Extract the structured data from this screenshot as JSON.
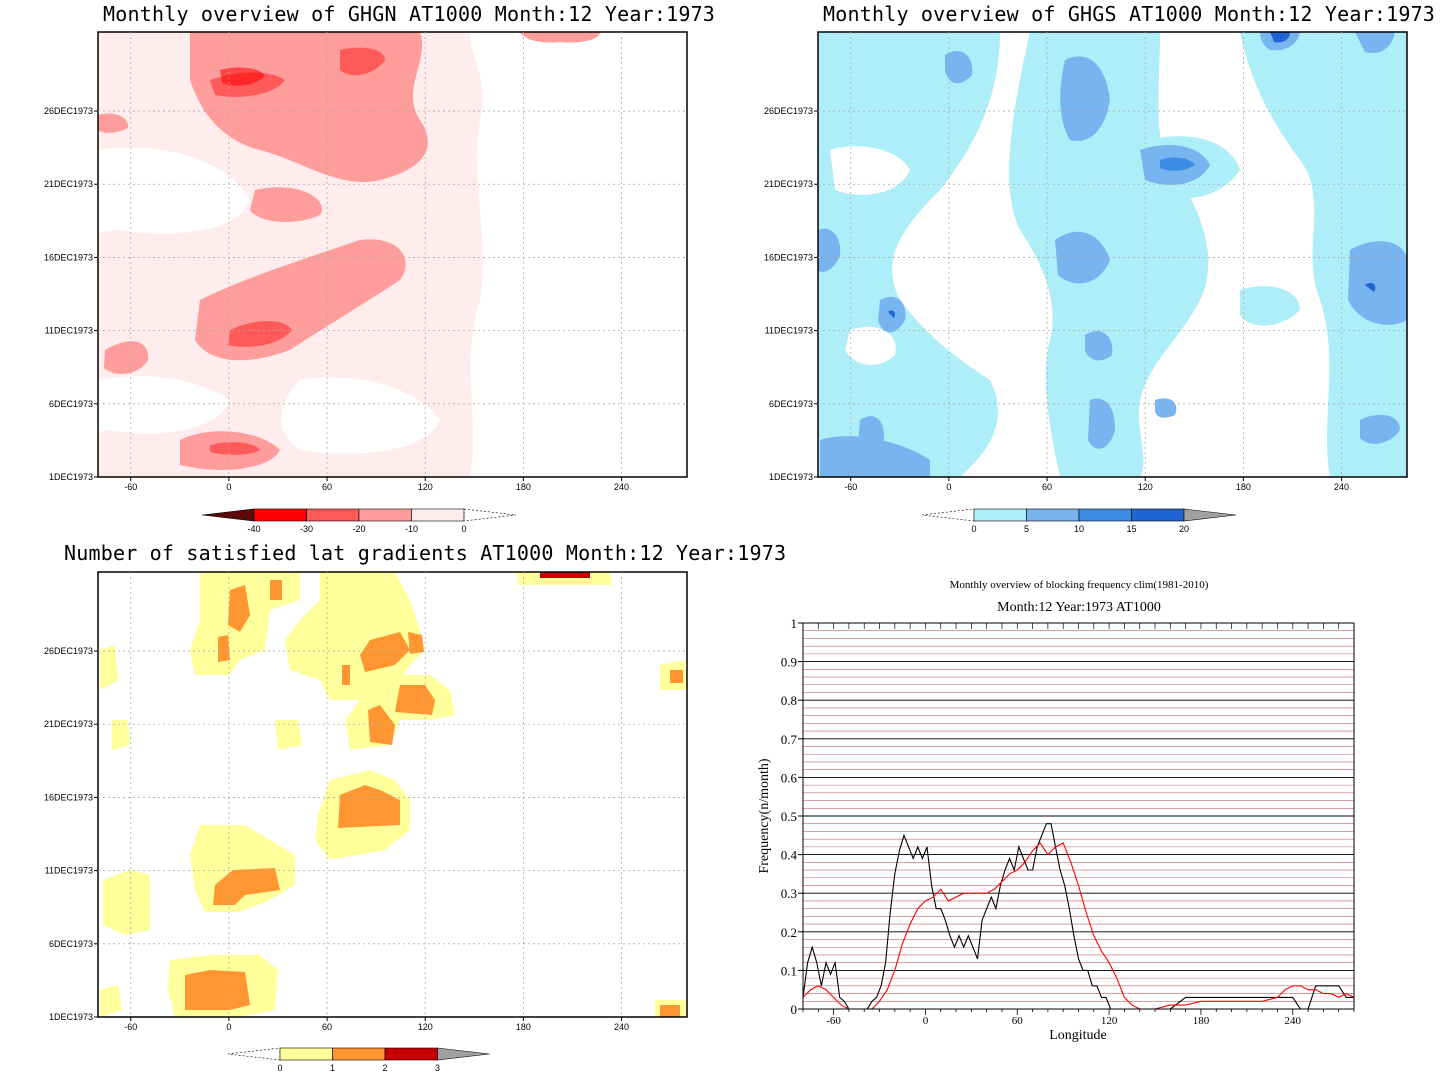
{
  "panels": {
    "ghgn": {
      "title": "Monthly overview of GHGN AT1000 Month:12 Year:1973",
      "colorbar_labels": [
        "-40",
        "-30",
        "-20",
        "-10",
        "0"
      ],
      "colorbar_colors": [
        "#5a0a0a",
        "#ff0000",
        "#ff5a5a",
        "#ff9c9c",
        "#ffecec"
      ]
    },
    "ghgs": {
      "title": "Monthly overview of GHGS AT1000 Month:12 Year:1973",
      "colorbar_labels": [
        "0",
        "5",
        "10",
        "15",
        "20"
      ],
      "colorbar_colors": [
        "#aeeef8",
        "#78b4f0",
        "#3c8ce6",
        "#1e64d2",
        "#a0a0a0"
      ]
    },
    "gradients": {
      "title": "Number of satisfied lat gradients AT1000 Month:12 Year:1973",
      "colorbar_labels": [
        "0",
        "1",
        "2",
        "3"
      ],
      "colorbar_colors": [
        "#ffff9c",
        "#ff9632",
        "#c80000",
        "#a0a0a0"
      ]
    },
    "frequency": {
      "title_line1": "Monthly overview of blocking frequency clim(1981-2010)",
      "title_line2": "Month:12 Year:1973  AT1000"
    }
  },
  "map_axes": {
    "x_ticks": [
      "-60",
      "0",
      "60",
      "120",
      "180",
      "240"
    ],
    "y_ticks": [
      "1DEC1973",
      "6DEC1973",
      "11DEC1973",
      "16DEC1973",
      "21DEC1973",
      "26DEC1973"
    ]
  },
  "chart_data": [
    {
      "type": "heatmap",
      "title": "Monthly overview of GHGN AT1000 Month:12 Year:1973",
      "x_ticks": [
        -60,
        0,
        60,
        120,
        180,
        240
      ],
      "y_ticks": [
        "1DEC1973",
        "6DEC1973",
        "11DEC1973",
        "16DEC1973",
        "21DEC1973",
        "26DEC1973"
      ],
      "color_levels": [
        -40,
        -30,
        -20,
        -10,
        0
      ]
    },
    {
      "type": "heatmap",
      "title": "Monthly overview of GHGS AT1000 Month:12 Year:1973",
      "x_ticks": [
        -60,
        0,
        60,
        120,
        180,
        240
      ],
      "y_ticks": [
        "1DEC1973",
        "6DEC1973",
        "11DEC1973",
        "16DEC1973",
        "21DEC1973",
        "26DEC1973"
      ],
      "color_levels": [
        0,
        5,
        10,
        15,
        20
      ]
    },
    {
      "type": "heatmap",
      "title": "Number of satisfied lat gradients AT1000 Month:12 Year:1973",
      "x_ticks": [
        -60,
        0,
        60,
        120,
        180,
        240
      ],
      "y_ticks": [
        "1DEC1973",
        "6DEC1973",
        "11DEC1973",
        "16DEC1973",
        "21DEC1973",
        "26DEC1973"
      ],
      "color_levels": [
        0,
        1,
        2,
        3
      ]
    },
    {
      "type": "line",
      "title": "Monthly overview of blocking frequency clim(1981-2010)",
      "subtitle": "Month:12 Year:1973  AT1000",
      "xlabel": "Longitude",
      "ylabel": "Frequency(n/month)",
      "xlim": [
        -80,
        280
      ],
      "ylim": [
        0,
        1
      ],
      "x_ticks": [
        -60,
        0,
        60,
        120,
        180,
        240
      ],
      "y_ticks": [
        0,
        0.1,
        0.2,
        0.3,
        0.4,
        0.5,
        0.6,
        0.7,
        0.8,
        0.9,
        1
      ],
      "series": [
        {
          "color": "#000000",
          "x": [
            -80,
            -77,
            -74,
            -71,
            -68,
            -65,
            -62,
            -59,
            -56,
            -53,
            -50,
            -47,
            -44,
            -41,
            -38,
            -35,
            -32,
            -29,
            -26,
            -23,
            -20,
            -17,
            -14,
            -11,
            -8,
            -5,
            -2,
            1,
            4,
            7,
            10,
            13,
            16,
            19,
            22,
            25,
            28,
            31,
            34,
            37,
            40,
            43,
            46,
            49,
            52,
            55,
            58,
            61,
            64,
            67,
            70,
            73,
            76,
            79,
            82,
            85,
            88,
            91,
            94,
            97,
            100,
            103,
            106,
            109,
            112,
            115,
            118,
            121,
            124,
            127,
            130,
            135,
            140,
            150,
            160,
            170,
            180,
            190,
            200,
            210,
            220,
            230,
            240,
            245,
            250,
            255,
            260,
            265,
            270,
            275,
            280
          ],
          "y": [
            0.03,
            0.12,
            0.16,
            0.12,
            0.06,
            0.12,
            0.09,
            0.12,
            0.03,
            0.02,
            0.0,
            0.0,
            0.0,
            0.0,
            0.0,
            0.02,
            0.03,
            0.06,
            0.12,
            0.25,
            0.35,
            0.41,
            0.45,
            0.42,
            0.39,
            0.42,
            0.39,
            0.42,
            0.32,
            0.26,
            0.26,
            0.23,
            0.19,
            0.16,
            0.19,
            0.16,
            0.19,
            0.16,
            0.13,
            0.23,
            0.26,
            0.29,
            0.26,
            0.32,
            0.36,
            0.39,
            0.36,
            0.42,
            0.39,
            0.36,
            0.36,
            0.42,
            0.45,
            0.48,
            0.48,
            0.42,
            0.36,
            0.32,
            0.26,
            0.19,
            0.13,
            0.1,
            0.1,
            0.06,
            0.06,
            0.03,
            0.03,
            0.0,
            0.0,
            0.0,
            0.0,
            0.0,
            0.0,
            0.0,
            0.0,
            0.03,
            0.03,
            0.03,
            0.03,
            0.03,
            0.03,
            0.03,
            0.03,
            0.0,
            0.0,
            0.06,
            0.06,
            0.06,
            0.06,
            0.03,
            0.03
          ]
        },
        {
          "color": "#ff0000",
          "x": [
            -80,
            -75,
            -70,
            -65,
            -60,
            -55,
            -50,
            -45,
            -40,
            -35,
            -30,
            -25,
            -20,
            -15,
            -10,
            -5,
            0,
            5,
            10,
            15,
            20,
            25,
            30,
            35,
            40,
            45,
            50,
            55,
            60,
            65,
            70,
            75,
            80,
            85,
            90,
            95,
            100,
            105,
            110,
            115,
            120,
            125,
            130,
            135,
            140,
            150,
            160,
            170,
            180,
            190,
            200,
            210,
            220,
            230,
            235,
            240,
            245,
            250,
            255,
            260,
            265,
            270,
            275,
            280
          ],
          "y": [
            0.03,
            0.05,
            0.06,
            0.05,
            0.03,
            0.01,
            0.0,
            0.0,
            0.0,
            0.0,
            0.02,
            0.05,
            0.1,
            0.17,
            0.22,
            0.26,
            0.28,
            0.29,
            0.31,
            0.28,
            0.29,
            0.3,
            0.3,
            0.3,
            0.3,
            0.31,
            0.33,
            0.35,
            0.36,
            0.38,
            0.41,
            0.43,
            0.4,
            0.42,
            0.43,
            0.38,
            0.32,
            0.25,
            0.19,
            0.15,
            0.12,
            0.08,
            0.03,
            0.01,
            0.0,
            0.0,
            0.01,
            0.01,
            0.02,
            0.02,
            0.02,
            0.02,
            0.02,
            0.03,
            0.05,
            0.06,
            0.06,
            0.05,
            0.05,
            0.04,
            0.04,
            0.03,
            0.04,
            0.03
          ]
        }
      ]
    }
  ]
}
